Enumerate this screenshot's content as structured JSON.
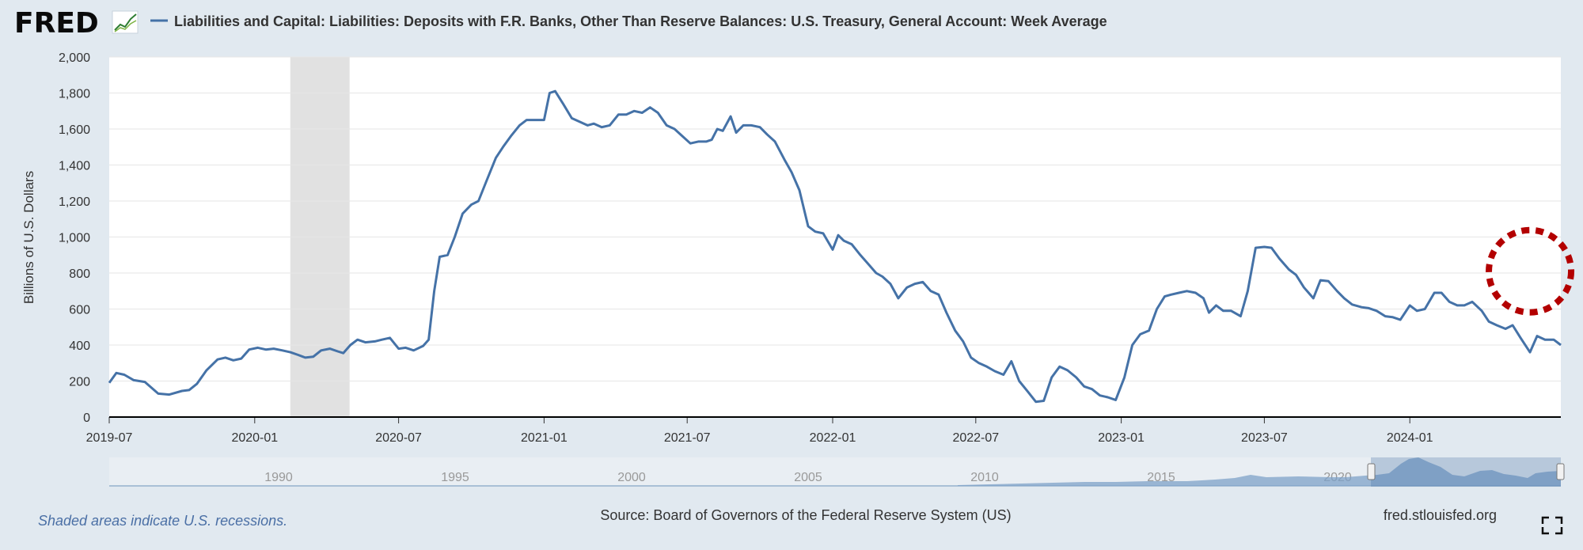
{
  "header": {
    "logo_text": "FRED",
    "legend_label": "Liabilities and Capital: Liabilities: Deposits with F.R. Banks, Other Than Reserve Balances: U.S. Treasury, General Account: Week Average",
    "series_color": "#4572a7"
  },
  "chart_data": {
    "type": "line",
    "title": "",
    "xlabel": "",
    "ylabel": "Billions of U.S. Dollars",
    "ylim": [
      0,
      2000
    ],
    "yticks": [
      "0",
      "200",
      "400",
      "600",
      "800",
      "1,000",
      "1,200",
      "1,400",
      "1,600",
      "1,800",
      "2,000"
    ],
    "xlim": [
      "2019-07-01",
      "2024-07-10"
    ],
    "xticks": [
      {
        "date": "2019-07-01",
        "label": "2019-07"
      },
      {
        "date": "2020-01-01",
        "label": "2020-01"
      },
      {
        "date": "2020-07-01",
        "label": "2020-07"
      },
      {
        "date": "2021-01-01",
        "label": "2021-01"
      },
      {
        "date": "2021-07-01",
        "label": "2021-07"
      },
      {
        "date": "2022-01-01",
        "label": "2022-01"
      },
      {
        "date": "2022-07-01",
        "label": "2022-07"
      },
      {
        "date": "2023-01-01",
        "label": "2023-01"
      },
      {
        "date": "2023-07-01",
        "label": "2023-07"
      },
      {
        "date": "2024-01-01",
        "label": "2024-01"
      }
    ],
    "grid": true,
    "recession": {
      "start": "2020-02-15",
      "end": "2020-04-30",
      "color": "#e1e1e1"
    },
    "annotation": {
      "type": "dashed-circle",
      "date": "2024-06-01",
      "value": 810,
      "color": "#b30000"
    },
    "series": [
      {
        "name": "Liabilities and Capital: Liabilities: Deposits with F.R. Banks, Other Than Reserve Balances: U.S. Treasury, General Account: Week Average",
        "color": "#4572a7",
        "points": [
          [
            "2019-07-01",
            190
          ],
          [
            "2019-07-10",
            245
          ],
          [
            "2019-07-20",
            235
          ],
          [
            "2019-08-01",
            205
          ],
          [
            "2019-08-15",
            195
          ],
          [
            "2019-09-01",
            130
          ],
          [
            "2019-09-15",
            125
          ],
          [
            "2019-10-01",
            145
          ],
          [
            "2019-10-10",
            150
          ],
          [
            "2019-10-20",
            185
          ],
          [
            "2019-11-01",
            260
          ],
          [
            "2019-11-15",
            320
          ],
          [
            "2019-11-25",
            330
          ],
          [
            "2019-12-05",
            315
          ],
          [
            "2019-12-15",
            325
          ],
          [
            "2019-12-25",
            375
          ],
          [
            "2020-01-05",
            385
          ],
          [
            "2020-01-15",
            375
          ],
          [
            "2020-01-25",
            380
          ],
          [
            "2020-02-05",
            370
          ],
          [
            "2020-02-15",
            360
          ],
          [
            "2020-02-25",
            345
          ],
          [
            "2020-03-05",
            330
          ],
          [
            "2020-03-15",
            335
          ],
          [
            "2020-03-25",
            370
          ],
          [
            "2020-04-05",
            380
          ],
          [
            "2020-04-15",
            365
          ],
          [
            "2020-04-22",
            355
          ],
          [
            "2020-05-01",
            400
          ],
          [
            "2020-05-10",
            430
          ],
          [
            "2020-05-20",
            415
          ],
          [
            "2020-06-01",
            420
          ],
          [
            "2020-06-10",
            430
          ],
          [
            "2020-06-20",
            440
          ],
          [
            "2020-07-01",
            380
          ],
          [
            "2020-07-10",
            385
          ],
          [
            "2020-07-20",
            370
          ],
          [
            "2020-08-01",
            395
          ],
          [
            "2020-08-08",
            430
          ],
          [
            "2020-08-15",
            700
          ],
          [
            "2020-08-22",
            890
          ],
          [
            "2020-09-01",
            900
          ],
          [
            "2020-09-10",
            1000
          ],
          [
            "2020-09-20",
            1130
          ],
          [
            "2020-10-01",
            1180
          ],
          [
            "2020-10-10",
            1200
          ],
          [
            "2020-10-20",
            1310
          ],
          [
            "2020-11-01",
            1440
          ],
          [
            "2020-11-10",
            1500
          ],
          [
            "2020-11-20",
            1560
          ],
          [
            "2020-12-01",
            1620
          ],
          [
            "2020-12-10",
            1650
          ],
          [
            "2020-12-20",
            1650
          ],
          [
            "2021-01-01",
            1650
          ],
          [
            "2021-01-08",
            1800
          ],
          [
            "2021-01-15",
            1810
          ],
          [
            "2021-01-25",
            1740
          ],
          [
            "2021-02-05",
            1660
          ],
          [
            "2021-02-15",
            1640
          ],
          [
            "2021-02-25",
            1620
          ],
          [
            "2021-03-05",
            1630
          ],
          [
            "2021-03-15",
            1610
          ],
          [
            "2021-03-25",
            1620
          ],
          [
            "2021-04-05",
            1680
          ],
          [
            "2021-04-15",
            1680
          ],
          [
            "2021-04-25",
            1700
          ],
          [
            "2021-05-05",
            1690
          ],
          [
            "2021-05-15",
            1720
          ],
          [
            "2021-05-25",
            1690
          ],
          [
            "2021-06-05",
            1620
          ],
          [
            "2021-06-15",
            1600
          ],
          [
            "2021-06-25",
            1560
          ],
          [
            "2021-07-05",
            1520
          ],
          [
            "2021-07-15",
            1530
          ],
          [
            "2021-07-25",
            1530
          ],
          [
            "2021-08-01",
            1540
          ],
          [
            "2021-08-08",
            1600
          ],
          [
            "2021-08-15",
            1590
          ],
          [
            "2021-08-25",
            1670
          ],
          [
            "2021-09-01",
            1580
          ],
          [
            "2021-09-10",
            1620
          ],
          [
            "2021-09-20",
            1620
          ],
          [
            "2021-10-01",
            1610
          ],
          [
            "2021-10-10",
            1570
          ],
          [
            "2021-10-20",
            1530
          ],
          [
            "2021-11-01",
            1430
          ],
          [
            "2021-11-10",
            1360
          ],
          [
            "2021-11-20",
            1260
          ],
          [
            "2021-12-01",
            1060
          ],
          [
            "2021-12-10",
            1030
          ],
          [
            "2021-12-20",
            1020
          ],
          [
            "2022-01-01",
            930
          ],
          [
            "2022-01-08",
            1010
          ],
          [
            "2022-01-15",
            980
          ],
          [
            "2022-01-25",
            960
          ],
          [
            "2022-02-05",
            900
          ],
          [
            "2022-02-15",
            850
          ],
          [
            "2022-02-25",
            800
          ],
          [
            "2022-03-05",
            780
          ],
          [
            "2022-03-15",
            740
          ],
          [
            "2022-03-25",
            660
          ],
          [
            "2022-04-05",
            720
          ],
          [
            "2022-04-15",
            740
          ],
          [
            "2022-04-25",
            750
          ],
          [
            "2022-05-05",
            700
          ],
          [
            "2022-05-15",
            680
          ],
          [
            "2022-05-25",
            580
          ],
          [
            "2022-06-05",
            480
          ],
          [
            "2022-06-15",
            420
          ],
          [
            "2022-06-25",
            330
          ],
          [
            "2022-07-05",
            300
          ],
          [
            "2022-07-15",
            280
          ],
          [
            "2022-07-25",
            255
          ],
          [
            "2022-08-05",
            235
          ],
          [
            "2022-08-15",
            310
          ],
          [
            "2022-08-25",
            200
          ],
          [
            "2022-09-05",
            140
          ],
          [
            "2022-09-15",
            85
          ],
          [
            "2022-09-25",
            90
          ],
          [
            "2022-10-05",
            220
          ],
          [
            "2022-10-15",
            280
          ],
          [
            "2022-10-25",
            260
          ],
          [
            "2022-11-05",
            220
          ],
          [
            "2022-11-15",
            170
          ],
          [
            "2022-11-25",
            155
          ],
          [
            "2022-12-05",
            120
          ],
          [
            "2022-12-15",
            110
          ],
          [
            "2022-12-25",
            95
          ],
          [
            "2023-01-05",
            220
          ],
          [
            "2023-01-15",
            400
          ],
          [
            "2023-01-25",
            460
          ],
          [
            "2023-02-05",
            480
          ],
          [
            "2023-02-15",
            600
          ],
          [
            "2023-02-25",
            670
          ],
          [
            "2023-03-05",
            680
          ],
          [
            "2023-03-15",
            690
          ],
          [
            "2023-03-25",
            700
          ],
          [
            "2023-04-05",
            690
          ],
          [
            "2023-04-15",
            660
          ],
          [
            "2023-04-22",
            580
          ],
          [
            "2023-05-01",
            620
          ],
          [
            "2023-05-10",
            590
          ],
          [
            "2023-05-20",
            590
          ],
          [
            "2023-06-01",
            560
          ],
          [
            "2023-06-10",
            700
          ],
          [
            "2023-06-20",
            940
          ],
          [
            "2023-07-01",
            945
          ],
          [
            "2023-07-10",
            940
          ],
          [
            "2023-07-20",
            880
          ],
          [
            "2023-08-01",
            820
          ],
          [
            "2023-08-10",
            790
          ],
          [
            "2023-08-20",
            720
          ],
          [
            "2023-09-01",
            660
          ],
          [
            "2023-09-10",
            760
          ],
          [
            "2023-09-20",
            755
          ],
          [
            "2023-10-01",
            700
          ],
          [
            "2023-10-10",
            660
          ],
          [
            "2023-10-20",
            625
          ],
          [
            "2023-11-01",
            610
          ],
          [
            "2023-11-10",
            605
          ],
          [
            "2023-11-20",
            590
          ],
          [
            "2023-12-01",
            560
          ],
          [
            "2023-12-10",
            555
          ],
          [
            "2023-12-20",
            540
          ],
          [
            "2024-01-01",
            620
          ],
          [
            "2024-01-10",
            590
          ],
          [
            "2024-01-20",
            600
          ],
          [
            "2024-02-01",
            690
          ],
          [
            "2024-02-10",
            690
          ],
          [
            "2024-02-20",
            640
          ],
          [
            "2024-03-01",
            620
          ],
          [
            "2024-03-10",
            620
          ],
          [
            "2024-03-20",
            640
          ],
          [
            "2024-04-01",
            590
          ],
          [
            "2024-04-10",
            530
          ],
          [
            "2024-04-20",
            510
          ],
          [
            "2024-05-01",
            490
          ],
          [
            "2024-05-10",
            510
          ],
          [
            "2024-05-20",
            440
          ],
          [
            "2024-06-01",
            360
          ],
          [
            "2024-06-10",
            450
          ],
          [
            "2024-06-20",
            430
          ],
          [
            "2024-07-01",
            430
          ],
          [
            "2024-07-10",
            400
          ]
        ]
      }
    ]
  },
  "navigator": {
    "years": [
      "1990",
      "1995",
      "2000",
      "2005",
      "2010",
      "2015",
      "2020"
    ]
  },
  "footer": {
    "recession_note": "Shaded areas indicate U.S. recessions.",
    "source": "Source: Board of Governors of the Federal Reserve System (US)",
    "site": "fred.stlouisfed.org"
  }
}
